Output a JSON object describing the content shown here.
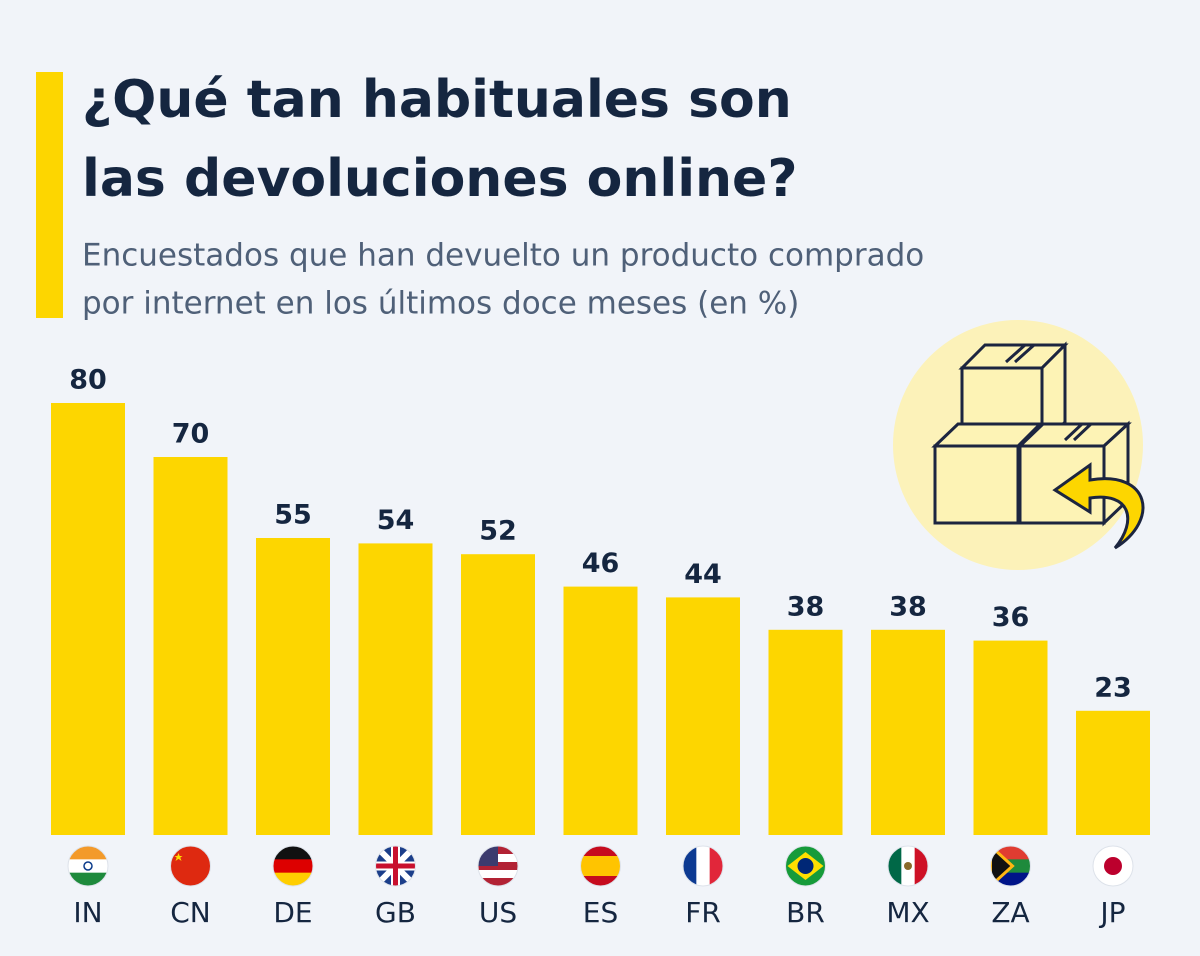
{
  "chart_data": {
    "type": "bar",
    "title": [
      "¿Qué tan habituales son",
      "las devoluciones online?"
    ],
    "subtitle": [
      "Encuestados que han devuelto un producto comprado",
      "por internet en los últimos doce meses (en %)"
    ],
    "categories": [
      "IN",
      "CN",
      "DE",
      "GB",
      "US",
      "ES",
      "FR",
      "BR",
      "MX",
      "ZA",
      "JP"
    ],
    "values": [
      80,
      70,
      55,
      54,
      52,
      46,
      44,
      38,
      38,
      36,
      23
    ],
    "color": "#fdd600",
    "ylim": [
      0,
      80
    ]
  }
}
